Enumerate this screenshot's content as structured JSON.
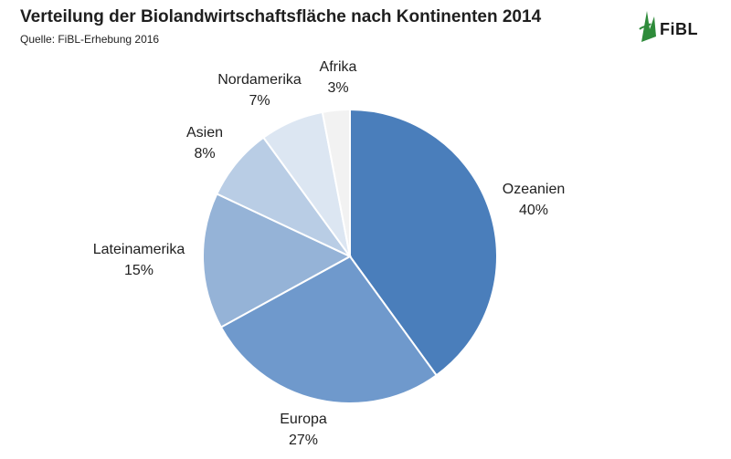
{
  "header": {
    "title": "Verteilung der Biolandwirtschaftsfläche nach Kontinenten 2014",
    "source": "Quelle: FiBL-Erhebung 2016"
  },
  "logo": {
    "text": "FiBL",
    "icon": "fibl-leaf-logo",
    "color": "#2e8b3a"
  },
  "chart_data": {
    "type": "pie",
    "title": "Verteilung der Biolandwirtschaftsfläche nach Kontinenten 2014",
    "subtitle": "Quelle: FiBL-Erhebung 2016",
    "start_angle_deg": 0,
    "direction": "clockwise",
    "slices": [
      {
        "name": "Ozeanien",
        "value": 40,
        "label": "40%",
        "color": "#4a7ebb"
      },
      {
        "name": "Europa",
        "value": 27,
        "label": "27%",
        "color": "#6f99cc"
      },
      {
        "name": "Lateinamerika",
        "value": 15,
        "label": "15%",
        "color": "#95b3d7"
      },
      {
        "name": "Asien",
        "value": 8,
        "label": "8%",
        "color": "#b9cde5"
      },
      {
        "name": "Nordamerika",
        "value": 7,
        "label": "7%",
        "color": "#dce6f2"
      },
      {
        "name": "Afrika",
        "value": 3,
        "label": "3%",
        "color": "#f2f2f2"
      }
    ]
  }
}
